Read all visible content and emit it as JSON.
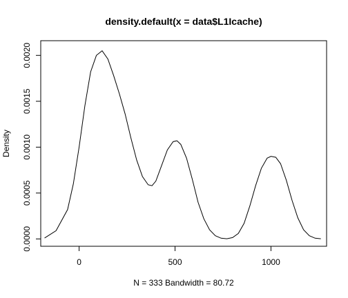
{
  "chart_data": {
    "type": "line",
    "title": "density.default(x = data$L1Icache)",
    "xlabel": "N = 333   Bandwidth = 80.72",
    "ylabel": "Density",
    "xlim": [
      -200,
      1290
    ],
    "ylim": [
      -8e-05,
      0.00216
    ],
    "x_ticks": [
      0,
      500,
      1000
    ],
    "x_tick_labels": [
      "0",
      "500",
      "1000"
    ],
    "y_ticks": [
      0,
      0.0005,
      0.001,
      0.0015,
      0.002
    ],
    "y_tick_labels": [
      "0.0000",
      "0.0005",
      "0.0010",
      "0.0015",
      "0.0020"
    ],
    "grid": false,
    "series": [
      {
        "x": [
          -180,
          -120,
          -60,
          -30,
          0,
          30,
          60,
          90,
          120,
          150,
          180,
          210,
          240,
          270,
          300,
          330,
          360,
          380,
          400,
          430,
          460,
          490,
          510,
          530,
          560,
          590,
          620,
          650,
          680,
          710,
          740,
          770,
          800,
          830,
          860,
          890,
          920,
          950,
          980,
          1000,
          1025,
          1050,
          1080,
          1110,
          1140,
          1170,
          1200,
          1230,
          1260
        ],
        "y": [
          1e-05,
          9e-05,
          0.00032,
          0.0006,
          0.001,
          0.00145,
          0.00182,
          0.002,
          0.00205,
          0.00196,
          0.00178,
          0.00158,
          0.00136,
          0.0011,
          0.00086,
          0.00068,
          0.00059,
          0.00058,
          0.00063,
          0.0008,
          0.00097,
          0.00106,
          0.00107,
          0.00103,
          0.00088,
          0.00065,
          0.0004,
          0.00022,
          0.0001,
          3.5e-05,
          8e-06,
          2e-06,
          1.5e-05,
          6e-05,
          0.00017,
          0.00036,
          0.00058,
          0.00077,
          0.00088,
          0.0009,
          0.00089,
          0.00082,
          0.00064,
          0.00042,
          0.00023,
          0.0001,
          3.5e-05,
          8e-06,
          1.5e-06
        ]
      }
    ]
  }
}
